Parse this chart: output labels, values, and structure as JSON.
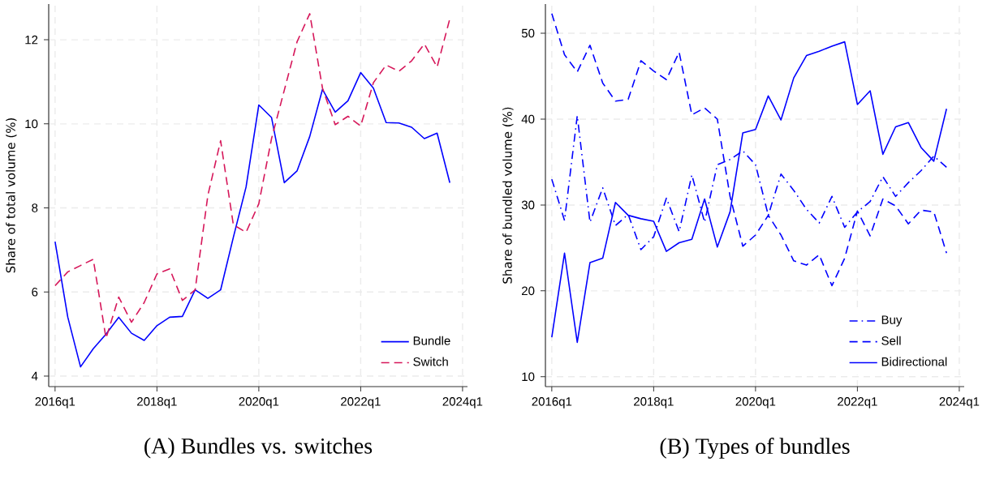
{
  "chart_data": [
    {
      "type": "line",
      "title": "(A) Bundles vs. switches",
      "ylabel": "Share of total volume (%)",
      "x": [
        "2016-01",
        "2016-04",
        "2016-07",
        "2016-10",
        "2017-01",
        "2017-04",
        "2017-07",
        "2017-10",
        "2018-01",
        "2018-04",
        "2018-07",
        "2018-10",
        "2019-01",
        "2019-04",
        "2019-07",
        "2019-10",
        "2020-01",
        "2020-04",
        "2020-07",
        "2020-10",
        "2021-01",
        "2021-04",
        "2021-07",
        "2021-10",
        "2022-01",
        "2022-04",
        "2022-07",
        "2022-10",
        "2023-01",
        "2023-04",
        "2023-07",
        "2023-10"
      ],
      "xlim": [
        "2015-11-16",
        "2024-02-06"
      ],
      "xticks": [
        {
          "value": "2016-01",
          "label": "2016q1"
        },
        {
          "value": "2018-01",
          "label": "2018q1"
        },
        {
          "value": "2020-01",
          "label": "2020q1"
        },
        {
          "value": "2022-01",
          "label": "2022q1"
        },
        {
          "value": "2024-01",
          "label": "2024q1"
        }
      ],
      "ylim": [
        3.75,
        12.85
      ],
      "yticks": [
        4,
        6,
        8,
        10,
        12
      ],
      "grid": true,
      "legend": "bottom right",
      "series": [
        {
          "name": "Bundle",
          "color": "#0000ff",
          "line_style": "solid",
          "values": [
            7.2,
            5.4,
            4.22,
            4.65,
            5.0,
            5.4,
            5.02,
            4.85,
            5.2,
            5.4,
            5.42,
            6.05,
            5.85,
            6.05,
            7.3,
            8.5,
            10.45,
            10.15,
            8.6,
            8.88,
            9.7,
            10.82,
            10.28,
            10.55,
            11.22,
            10.85,
            10.03,
            10.02,
            9.92,
            9.65,
            9.78,
            8.6
          ]
        },
        {
          "name": "Switch",
          "color": "#d6175a",
          "line_style": "dashed",
          "values": [
            6.15,
            6.48,
            6.63,
            6.78,
            4.9,
            5.88,
            5.28,
            5.75,
            6.43,
            6.55,
            5.8,
            6.05,
            8.3,
            9.6,
            7.6,
            7.42,
            8.1,
            9.65,
            10.8,
            11.95,
            12.62,
            10.85,
            9.98,
            10.18,
            9.95,
            10.98,
            11.4,
            11.25,
            11.5,
            11.9,
            11.35,
            12.5
          ]
        }
      ]
    },
    {
      "type": "line",
      "title": "(B) Types of bundles",
      "ylabel": "Share of bundled volume (%)",
      "x": [
        "2016-01",
        "2016-04",
        "2016-07",
        "2016-10",
        "2017-01",
        "2017-04",
        "2017-07",
        "2017-10",
        "2018-01",
        "2018-04",
        "2018-07",
        "2018-10",
        "2019-01",
        "2019-04",
        "2019-07",
        "2019-10",
        "2020-01",
        "2020-04",
        "2020-07",
        "2020-10",
        "2021-01",
        "2021-04",
        "2021-07",
        "2021-10",
        "2022-01",
        "2022-04",
        "2022-07",
        "2022-10",
        "2023-01",
        "2023-04",
        "2023-07",
        "2023-10"
      ],
      "xlim": [
        "2015-11-16",
        "2024-02-06"
      ],
      "xticks": [
        {
          "value": "2016-01",
          "label": "2016q1"
        },
        {
          "value": "2018-01",
          "label": "2018q1"
        },
        {
          "value": "2020-01",
          "label": "2020q1"
        },
        {
          "value": "2022-01",
          "label": "2022q1"
        },
        {
          "value": "2024-01",
          "label": "2024q1"
        }
      ],
      "ylim": [
        8.85,
        53.4
      ],
      "yticks": [
        10,
        20,
        30,
        40,
        50
      ],
      "grid": true,
      "legend": "bottom right",
      "series": [
        {
          "name": "Buy",
          "color": "#0000ff",
          "line_style": "dashdot",
          "values": [
            33.0,
            28.2,
            40.4,
            28.0,
            32.0,
            27.6,
            28.9,
            24.8,
            26.3,
            30.8,
            26.9,
            33.5,
            28.0,
            34.7,
            35.3,
            36.3,
            34.7,
            28.8,
            33.6,
            31.7,
            29.5,
            27.9,
            31.0,
            27.4,
            29.2,
            30.4,
            33.3,
            31.0,
            32.6,
            34.0,
            35.7,
            34.4
          ]
        },
        {
          "name": "Sell",
          "color": "#0000ff",
          "line_style": "dashed",
          "values": [
            52.3,
            47.5,
            45.5,
            48.6,
            44.2,
            42.1,
            42.3,
            46.8,
            45.6,
            44.6,
            47.8,
            40.5,
            41.3,
            40.0,
            31.0,
            25.2,
            26.5,
            28.8,
            26.5,
            23.5,
            23.0,
            24.2,
            20.6,
            23.8,
            29.3,
            26.4,
            30.7,
            29.9,
            27.8,
            29.4,
            29.2,
            24.4
          ]
        },
        {
          "name": "Bidirectional",
          "color": "#0000ff",
          "line_style": "solid",
          "values": [
            14.6,
            24.4,
            14.0,
            23.3,
            23.8,
            30.3,
            28.8,
            28.4,
            28.1,
            24.6,
            25.6,
            26.0,
            30.7,
            25.1,
            29.2,
            38.4,
            38.8,
            42.7,
            39.9,
            44.8,
            47.4,
            47.9,
            48.5,
            49.0,
            41.7,
            43.3,
            35.9,
            39.1,
            39.6,
            36.7,
            35.1,
            41.2
          ]
        }
      ]
    }
  ]
}
